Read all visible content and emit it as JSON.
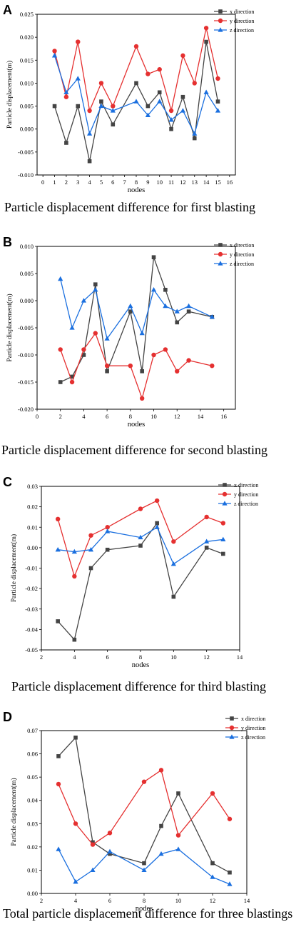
{
  "colors": {
    "x": "#444444",
    "y": "#e53030",
    "z": "#1a6fdf"
  },
  "chart_data": [
    {
      "type": "line",
      "panel_label": "A",
      "caption": "Particle displacement difference for first blasting",
      "xlabel": "nodes",
      "ylabel": "Particle displacement(m)",
      "xlim": [
        -0.5,
        16.5
      ],
      "ylim": [
        -0.01,
        0.025
      ],
      "xticks": [
        0,
        1,
        2,
        3,
        4,
        5,
        6,
        7,
        8,
        9,
        10,
        11,
        12,
        13,
        14,
        15,
        16
      ],
      "yticks": [
        -0.01,
        -0.005,
        0.0,
        0.005,
        0.01,
        0.015,
        0.02,
        0.025
      ],
      "yticklabels": [
        "-0.010",
        "-0.005",
        "0.000",
        "0.005",
        "0.010",
        "0.015",
        "0.020",
        "0.025"
      ],
      "legend_position": "top-right",
      "series": [
        {
          "name": "x direction",
          "marker": "square",
          "x": [
            1,
            2,
            3,
            4,
            5,
            6,
            8,
            9,
            10,
            11,
            12,
            13,
            14,
            15
          ],
          "values": [
            0.005,
            -0.003,
            0.005,
            -0.007,
            0.006,
            0.001,
            0.01,
            0.005,
            0.008,
            0.0,
            0.007,
            -0.002,
            0.019,
            0.006
          ]
        },
        {
          "name": "y direction",
          "marker": "circle",
          "x": [
            1,
            2,
            3,
            4,
            5,
            6,
            8,
            9,
            10,
            11,
            12,
            13,
            14,
            15
          ],
          "values": [
            0.017,
            0.007,
            0.019,
            0.004,
            0.01,
            0.005,
            0.018,
            0.012,
            0.013,
            0.004,
            0.016,
            0.01,
            0.022,
            0.011
          ]
        },
        {
          "name": "z direction",
          "marker": "triangle",
          "x": [
            1,
            2,
            3,
            4,
            5,
            6,
            8,
            9,
            10,
            11,
            12,
            13,
            14,
            15
          ],
          "values": [
            0.016,
            0.008,
            0.011,
            -0.001,
            0.005,
            0.004,
            0.006,
            0.003,
            0.006,
            0.002,
            0.004,
            -0.001,
            0.008,
            0.004
          ]
        }
      ]
    },
    {
      "type": "line",
      "panel_label": "B",
      "caption": "Particle displacement difference for second blasting",
      "xlabel": "nodes",
      "ylabel": "Particle displacement(m)",
      "xlim": [
        0,
        17
      ],
      "ylim": [
        -0.02,
        0.01
      ],
      "xticks": [
        0,
        2,
        4,
        6,
        8,
        10,
        12,
        14,
        16
      ],
      "yticks": [
        -0.02,
        -0.015,
        -0.01,
        -0.005,
        0.0,
        0.005,
        0.01
      ],
      "yticklabels": [
        "-0.020",
        "-0.015",
        "-0.010",
        "-0.005",
        "0.000",
        "0.005",
        "0.010"
      ],
      "legend_position": "top-right",
      "series": [
        {
          "name": "x direction",
          "marker": "square",
          "x": [
            2,
            3,
            4,
            5,
            6,
            8,
            9,
            10,
            11,
            12,
            13,
            15
          ],
          "values": [
            -0.015,
            -0.014,
            -0.01,
            0.003,
            -0.013,
            -0.002,
            -0.013,
            0.008,
            0.002,
            -0.004,
            -0.002,
            -0.003
          ]
        },
        {
          "name": "y direction",
          "marker": "circle",
          "x": [
            2,
            3,
            4,
            5,
            6,
            8,
            9,
            10,
            11,
            12,
            13,
            15
          ],
          "values": [
            -0.009,
            -0.015,
            -0.009,
            -0.006,
            -0.012,
            -0.012,
            -0.018,
            -0.01,
            -0.009,
            -0.013,
            -0.011,
            -0.012
          ]
        },
        {
          "name": "z direction",
          "marker": "triangle",
          "x": [
            2,
            3,
            4,
            5,
            6,
            8,
            9,
            10,
            11,
            12,
            13,
            15
          ],
          "values": [
            0.004,
            -0.005,
            0.0,
            0.002,
            -0.007,
            -0.001,
            -0.006,
            0.002,
            -0.001,
            -0.002,
            -0.001,
            -0.003
          ]
        }
      ]
    },
    {
      "type": "line",
      "panel_label": "C",
      "caption": "Particle displacement difference for third blasting",
      "xlabel": "nodes",
      "ylabel": "Particle displacement(m)",
      "xlim": [
        2,
        14
      ],
      "ylim": [
        -0.05,
        0.03
      ],
      "xticks": [
        2,
        4,
        6,
        8,
        10,
        12,
        14
      ],
      "yticks": [
        -0.05,
        -0.04,
        -0.03,
        -0.02,
        -0.01,
        0.0,
        0.01,
        0.02,
        0.03
      ],
      "yticklabels": [
        "-0.05",
        "-0.04",
        "-0.03",
        "-0.02",
        "-0.01",
        "0.00",
        "0.01",
        "0.02",
        "0.03"
      ],
      "legend_position": "top-right",
      "series": [
        {
          "name": "x direction",
          "marker": "square",
          "x": [
            3,
            4,
            5,
            6,
            8,
            9,
            10,
            12,
            13
          ],
          "values": [
            -0.036,
            -0.045,
            -0.01,
            -0.001,
            0.001,
            0.012,
            -0.024,
            0.0,
            -0.003
          ]
        },
        {
          "name": "y direction",
          "marker": "circle",
          "x": [
            3,
            4,
            5,
            6,
            8,
            9,
            10,
            12,
            13
          ],
          "values": [
            0.014,
            -0.014,
            0.006,
            0.01,
            0.019,
            0.023,
            0.003,
            0.015,
            0.012
          ]
        },
        {
          "name": "z direction",
          "marker": "triangle",
          "x": [
            3,
            4,
            5,
            6,
            8,
            9,
            10,
            12,
            13
          ],
          "values": [
            -0.001,
            -0.002,
            -0.001,
            0.008,
            0.005,
            0.01,
            -0.008,
            0.003,
            0.004
          ]
        }
      ]
    },
    {
      "type": "line",
      "panel_label": "D",
      "caption": "Total particle displacement difference for three blastings",
      "xlabel": "nodes",
      "ylabel": "Particle displacement(m)",
      "xlim": [
        2,
        14
      ],
      "ylim": [
        0.0,
        0.07
      ],
      "xticks": [
        2,
        4,
        6,
        8,
        10,
        12,
        14
      ],
      "yticks": [
        0.0,
        0.01,
        0.02,
        0.03,
        0.04,
        0.05,
        0.06,
        0.07
      ],
      "yticklabels": [
        "0.00",
        "0.01",
        "0.02",
        "0.03",
        "0.04",
        "0.05",
        "0.06",
        "0.07"
      ],
      "legend_position": "top-right",
      "series": [
        {
          "name": "x direction",
          "marker": "square",
          "x": [
            3,
            4,
            5,
            6,
            8,
            9,
            10,
            12,
            13
          ],
          "values": [
            0.059,
            0.067,
            0.022,
            0.017,
            0.013,
            0.029,
            0.043,
            0.013,
            0.009
          ]
        },
        {
          "name": "y direction",
          "marker": "circle",
          "x": [
            3,
            4,
            5,
            6,
            8,
            9,
            10,
            12,
            13
          ],
          "values": [
            0.047,
            0.03,
            0.021,
            0.026,
            0.048,
            0.053,
            0.025,
            0.043,
            0.032
          ]
        },
        {
          "name": "z direction",
          "marker": "triangle",
          "x": [
            3,
            4,
            5,
            6,
            8,
            9,
            10,
            12,
            13
          ],
          "values": [
            0.019,
            0.005,
            0.01,
            0.018,
            0.01,
            0.017,
            0.019,
            0.007,
            0.004
          ]
        }
      ]
    }
  ]
}
